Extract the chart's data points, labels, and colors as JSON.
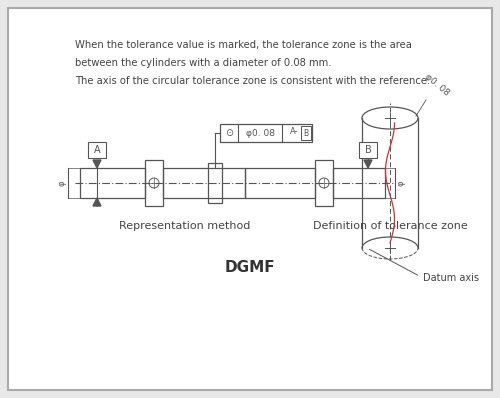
{
  "bg_color": "#e8e8e8",
  "inner_bg": "#ffffff",
  "border_color": "#aaaaaa",
  "line_color": "#555555",
  "text_color": "#444444",
  "title_text": "DGMF",
  "desc_lines": [
    "When the tolerance value is marked, the tolerance zone is the area",
    "between the cylinders with a diameter of 0.08 mm.",
    "The axis of the circular tolerance zone is consistent with the reference."
  ],
  "label_rep": "Representation method",
  "label_def": "Definition of tolerance zone",
  "datum_axis_label": "Datum axis",
  "datum_a": "A",
  "datum_b": "B",
  "phi_tol": "φ0. 08",
  "datum_ref": "A-B"
}
